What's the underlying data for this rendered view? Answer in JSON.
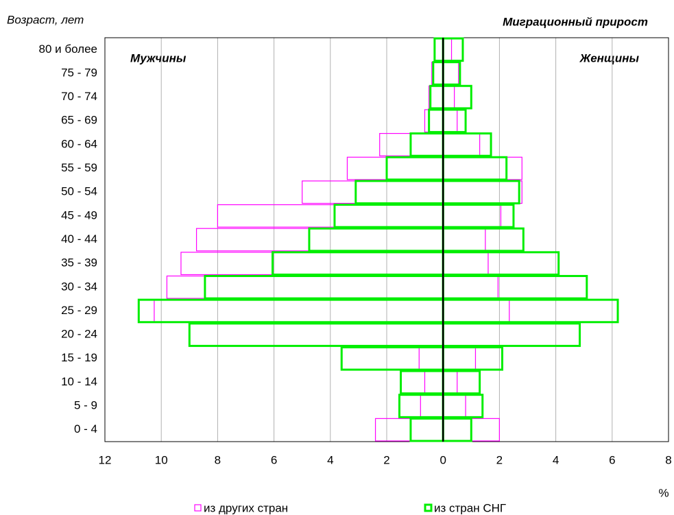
{
  "chart_data": {
    "type": "pyramid",
    "y_axis_label": "Возраст, лет",
    "title": "Миграционный прирост",
    "men_label": "Мужчины",
    "women_label": "Женщины",
    "x_axis_label": "%",
    "categories": [
      "80 и более",
      "75 - 79",
      "70 - 74",
      "65 - 69",
      "60 - 64",
      "55 - 59",
      "50 - 54",
      "45 - 49",
      "40 - 44",
      "35 - 39",
      "30 - 34",
      "25 - 29",
      "20 - 24",
      "15 - 19",
      "10 - 14",
      "5 - 9",
      "0 - 4"
    ],
    "series": [
      {
        "name": "из других стран",
        "color": "#ff00ff",
        "stroke_width": 1.2,
        "men": [
          -0.3,
          -0.4,
          -0.5,
          -0.65,
          -2.25,
          -3.4,
          -5.0,
          -8.0,
          -8.75,
          -9.3,
          -9.8,
          -10.25,
          -9.0,
          -0.85,
          -0.65,
          -0.8,
          -2.4
        ],
        "women": [
          0.3,
          0.55,
          0.4,
          0.5,
          1.3,
          2.8,
          2.8,
          2.05,
          1.5,
          1.6,
          1.95,
          2.35,
          4.85,
          1.15,
          0.5,
          0.8,
          2.0
        ]
      },
      {
        "name": "из стран СНГ",
        "color": "#00ee00",
        "stroke_width": 3,
        "men": [
          -0.3,
          -0.35,
          -0.45,
          -0.5,
          -1.15,
          -2.0,
          -3.1,
          -3.85,
          -4.75,
          -6.05,
          -8.45,
          -10.8,
          -9.0,
          -3.6,
          -1.5,
          -1.55,
          -1.15
        ],
        "women": [
          0.7,
          0.6,
          1.0,
          0.8,
          1.7,
          2.25,
          2.7,
          2.5,
          2.85,
          4.1,
          5.1,
          6.2,
          4.85,
          2.1,
          1.3,
          1.4,
          1.0
        ]
      }
    ],
    "xlim": [
      -12,
      8
    ],
    "xticks": [
      {
        "value": -12,
        "label": "12"
      },
      {
        "value": -10,
        "label": "10"
      },
      {
        "value": -8,
        "label": "8"
      },
      {
        "value": -6,
        "label": "6"
      },
      {
        "value": -4,
        "label": "4"
      },
      {
        "value": -2,
        "label": "2"
      },
      0,
      2,
      4,
      6,
      8
    ],
    "grid": true
  }
}
